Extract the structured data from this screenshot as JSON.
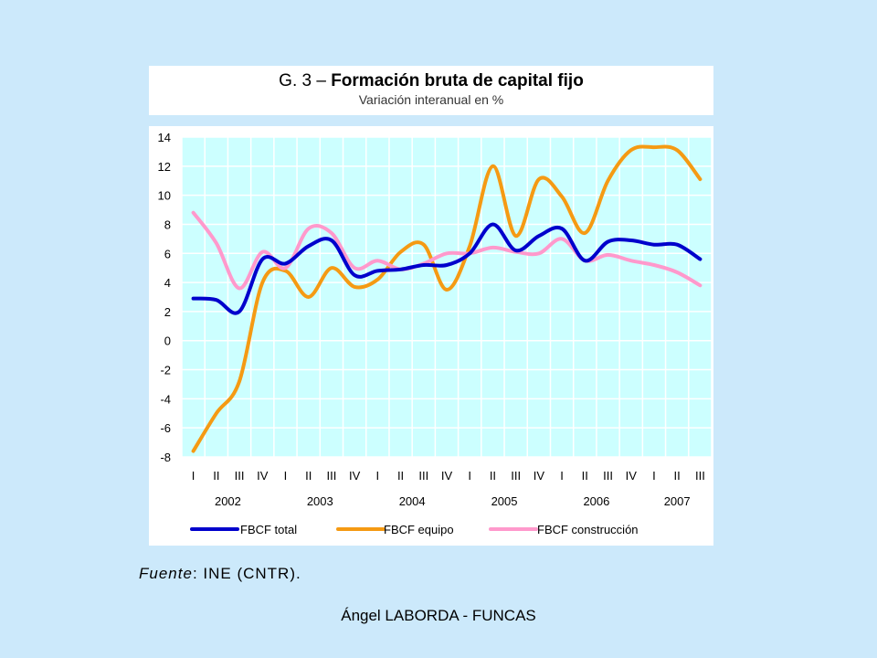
{
  "header": {
    "title_prefix": "G. 3 – ",
    "title_bold": "Formación bruta de capital fijo",
    "subtitle": "Variación interanual en %"
  },
  "source": {
    "label": "Fuente",
    "text": ": INE (CNTR)."
  },
  "footer": {
    "text": "Ángel LABORDA - FUNCAS"
  },
  "colors": {
    "plot_background": "#ccffff",
    "grid": "#ffffff",
    "total": "#0000cc",
    "equipo": "#f59a13",
    "construccion": "#ff99cc"
  },
  "chart_data": {
    "type": "line",
    "title": "G. 3 – Formación bruta de capital fijo",
    "subtitle": "Variación interanual en %",
    "ylim": [
      -8,
      14
    ],
    "yticks": [
      14,
      12,
      10,
      8,
      6,
      4,
      2,
      0,
      -2,
      -4,
      -6,
      -8
    ],
    "grid": true,
    "legend_position": "bottom",
    "quarters": [
      "I",
      "II",
      "III",
      "IV",
      "I",
      "II",
      "III",
      "IV",
      "I",
      "II",
      "III",
      "IV",
      "I",
      "II",
      "III",
      "IV",
      "I",
      "II",
      "III",
      "IV",
      "I",
      "II",
      "III"
    ],
    "years": [
      {
        "label": "2002",
        "start": 0,
        "count": 4
      },
      {
        "label": "2003",
        "start": 4,
        "count": 4
      },
      {
        "label": "2004",
        "start": 8,
        "count": 4
      },
      {
        "label": "2005",
        "start": 12,
        "count": 4
      },
      {
        "label": "2006",
        "start": 16,
        "count": 4
      },
      {
        "label": "2007",
        "start": 20,
        "count": 3
      }
    ],
    "series": [
      {
        "name": "FBCF total",
        "color": "#0000cc",
        "values": [
          2.9,
          2.8,
          2.0,
          5.6,
          5.3,
          6.5,
          6.9,
          4.5,
          4.8,
          4.9,
          5.2,
          5.2,
          6.0,
          8.0,
          6.2,
          7.2,
          7.7,
          5.5,
          6.8,
          6.9,
          6.6,
          6.6,
          5.6
        ]
      },
      {
        "name": "FBCF equipo",
        "color": "#f59a13",
        "values": [
          -7.6,
          -5.0,
          -2.8,
          4.0,
          4.8,
          3.0,
          5.0,
          3.7,
          4.2,
          6.1,
          6.6,
          3.5,
          6.5,
          12.0,
          7.2,
          11.1,
          9.9,
          7.4,
          11.0,
          13.1,
          13.3,
          13.1,
          11.1
        ]
      },
      {
        "name": "FBCF construcción",
        "color": "#ff99cc",
        "values": [
          8.8,
          6.7,
          3.6,
          6.1,
          5.0,
          7.7,
          7.4,
          5.0,
          5.5,
          4.9,
          5.3,
          6.0,
          6.0,
          6.4,
          6.1,
          6.0,
          7.0,
          5.5,
          5.9,
          5.5,
          5.2,
          4.7,
          3.8
        ]
      }
    ]
  }
}
